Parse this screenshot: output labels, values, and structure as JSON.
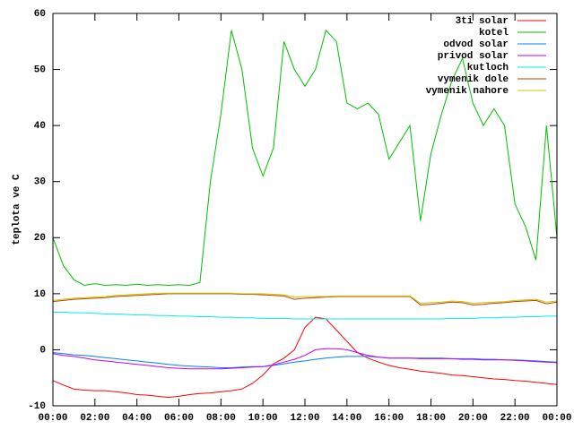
{
  "chart_data": {
    "type": "line",
    "y_label": "teplota ve C",
    "x": [
      0,
      0.5,
      1,
      1.5,
      2,
      2.5,
      3,
      3.5,
      4,
      4.5,
      5,
      5.5,
      6,
      6.5,
      7,
      7.5,
      8,
      8.5,
      9,
      9.5,
      10,
      10.5,
      11,
      11.5,
      12,
      12.5,
      13,
      13.5,
      14,
      14.5,
      15,
      15.5,
      16,
      16.5,
      17,
      17.5,
      18,
      18.5,
      19,
      19.5,
      20,
      20.5,
      21,
      21.5,
      22,
      22.5,
      23,
      23.5,
      24
    ],
    "xlim": [
      0,
      24
    ],
    "xticks": [
      {
        "value": 0,
        "label": "00:00"
      },
      {
        "value": 2,
        "label": "02:00"
      },
      {
        "value": 4,
        "label": "04:00"
      },
      {
        "value": 6,
        "label": "06:00"
      },
      {
        "value": 8,
        "label": "08:00"
      },
      {
        "value": 10,
        "label": "10:00"
      },
      {
        "value": 12,
        "label": "12:00"
      },
      {
        "value": 14,
        "label": "14:00"
      },
      {
        "value": 16,
        "label": "16:00"
      },
      {
        "value": 18,
        "label": "18:00"
      },
      {
        "value": 20,
        "label": "20:00"
      },
      {
        "value": 22,
        "label": "22:00"
      },
      {
        "value": 24,
        "label": "00:00"
      }
    ],
    "ylim": [
      -10,
      60
    ],
    "yticks": [
      -10,
      0,
      10,
      20,
      30,
      40,
      50,
      60
    ],
    "legend": "top-right",
    "series": [
      {
        "name": "3ti solar",
        "color": "#ff0000",
        "values": [
          -5.5,
          -6.3,
          -7,
          -7.2,
          -7.3,
          -7.3,
          -7.5,
          -7.7,
          -8,
          -8.1,
          -8.3,
          -8.5,
          -8.3,
          -8,
          -7.8,
          -7.7,
          -7.5,
          -7.3,
          -7,
          -6,
          -4.5,
          -2.5,
          -1.5,
          0,
          4,
          5.8,
          5.5,
          3.5,
          1.5,
          -0.5,
          -1.5,
          -2.2,
          -2.8,
          -3.2,
          -3.5,
          -3.8,
          -4,
          -4.2,
          -4.5,
          -4.6,
          -4.8,
          -5,
          -5.2,
          -5.3,
          -5.5,
          -5.6,
          -5.8,
          -6,
          -6.2
        ]
      },
      {
        "name": "kotel",
        "color": "#00c000",
        "values": [
          20,
          15,
          12.5,
          11.5,
          11.8,
          11.5,
          11.6,
          11.5,
          11.7,
          11.5,
          11.6,
          11.5,
          11.6,
          11.5,
          12,
          30,
          42,
          57,
          50,
          36,
          31,
          36,
          55,
          50,
          47,
          50,
          57,
          55,
          44,
          43,
          44,
          42,
          34,
          37,
          40,
          23,
          35,
          42,
          48,
          52,
          44,
          40,
          43,
          40,
          26,
          22,
          16,
          40,
          20
        ]
      },
      {
        "name": "odvod solar",
        "color": "#0080ff",
        "values": [
          -0.5,
          -0.7,
          -0.9,
          -1,
          -1.2,
          -1.4,
          -1.6,
          -1.8,
          -2,
          -2.2,
          -2.4,
          -2.6,
          -2.8,
          -2.9,
          -3,
          -3.1,
          -3.2,
          -3.2,
          -3.1,
          -3,
          -3,
          -2.8,
          -2.5,
          -2.2,
          -2,
          -1.7,
          -1.5,
          -1.3,
          -1.2,
          -1.2,
          -1.2,
          -1.3,
          -1.5,
          -1.5,
          -1.5,
          -1.5,
          -1.5,
          -1.5,
          -1.6,
          -1.6,
          -1.6,
          -1.7,
          -1.7,
          -1.8,
          -1.8,
          -1.9,
          -2,
          -2.1,
          -2.2
        ]
      },
      {
        "name": "privod solar",
        "color": "#c000ff",
        "values": [
          -0.7,
          -1,
          -1.2,
          -1.5,
          -1.8,
          -2,
          -2.2,
          -2.4,
          -2.6,
          -2.8,
          -3,
          -3.2,
          -3.3,
          -3.4,
          -3.4,
          -3.4,
          -3.4,
          -3.3,
          -3.2,
          -3.1,
          -3,
          -2.7,
          -2.2,
          -1.7,
          -1,
          0,
          0.2,
          0.2,
          0,
          -0.5,
          -1,
          -1.3,
          -1.5,
          -1.5,
          -1.5,
          -1.6,
          -1.6,
          -1.6,
          -1.6,
          -1.7,
          -1.7,
          -1.8,
          -1.8,
          -1.8,
          -1.9,
          -2,
          -2.1,
          -2.2,
          -2.3
        ]
      },
      {
        "name": "kutloch",
        "color": "#00eeee",
        "values": [
          6.7,
          6.7,
          6.6,
          6.6,
          6.5,
          6.4,
          6.4,
          6.3,
          6.2,
          6.2,
          6.1,
          6.1,
          6,
          6,
          5.9,
          5.9,
          5.8,
          5.8,
          5.7,
          5.7,
          5.6,
          5.6,
          5.6,
          5.5,
          5.5,
          5.5,
          5.5,
          5.5,
          5.5,
          5.5,
          5.5,
          5.5,
          5.5,
          5.5,
          5.5,
          5.5,
          5.5,
          5.5,
          5.6,
          5.6,
          5.6,
          5.7,
          5.7,
          5.8,
          5.8,
          5.9,
          5.9,
          6,
          6
        ]
      },
      {
        "name": "vymenik dole",
        "color": "#c04000",
        "values": [
          8.6,
          8.8,
          9,
          9.1,
          9.2,
          9.3,
          9.5,
          9.6,
          9.7,
          9.8,
          9.9,
          10,
          10,
          10,
          10,
          10,
          10,
          10,
          9.9,
          9.9,
          9.8,
          9.7,
          9.6,
          9,
          9.2,
          9.3,
          9.4,
          9.5,
          9.5,
          9.5,
          9.5,
          9.5,
          9.5,
          9.5,
          9.5,
          8,
          8.1,
          8.3,
          8.5,
          8.4,
          8,
          8.1,
          8.3,
          8.4,
          8.6,
          8.7,
          8.8,
          8.2,
          8.5
        ]
      },
      {
        "name": "vymenik nahore",
        "color": "#c8c800",
        "values": [
          8.8,
          9,
          9.2,
          9.3,
          9.4,
          9.5,
          9.7,
          9.8,
          9.9,
          10,
          10.1,
          10.1,
          10.1,
          10.1,
          10.1,
          10.1,
          10.1,
          10.1,
          10,
          10,
          10,
          9.9,
          9.8,
          9.4,
          9.5,
          9.5,
          9.5,
          9.6,
          9.6,
          9.6,
          9.6,
          9.6,
          9.6,
          9.6,
          9.6,
          8.3,
          8.4,
          8.5,
          8.7,
          8.6,
          8.3,
          8.4,
          8.5,
          8.6,
          8.8,
          8.9,
          9,
          8.5,
          8.7
        ]
      }
    ]
  }
}
